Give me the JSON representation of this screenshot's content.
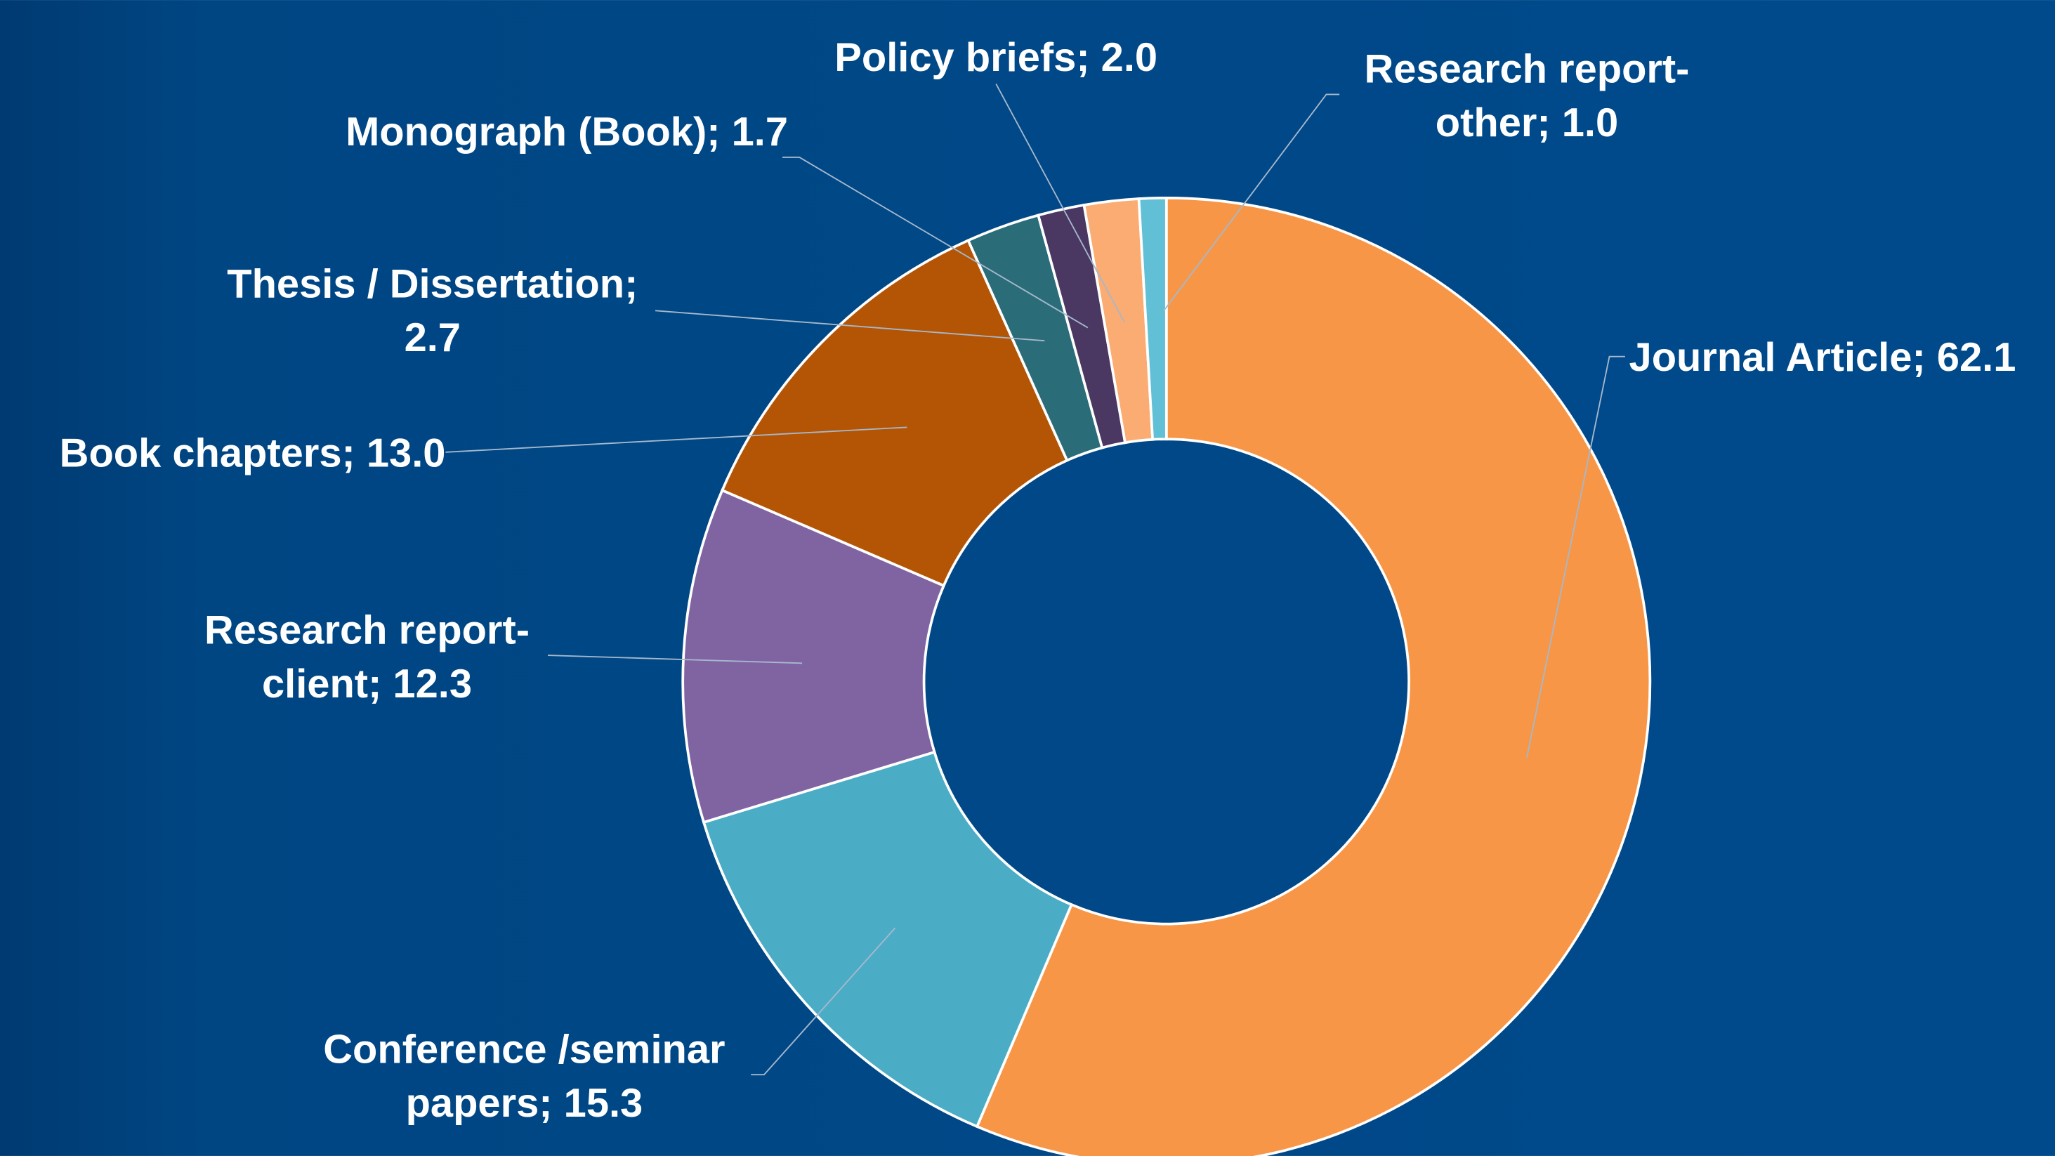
{
  "chart_data": {
    "type": "donut",
    "categories": [
      "Journal Article",
      "Conference /seminar papers",
      "Research report-client",
      "Book chapters",
      "Thesis / Dissertation",
      "Monograph (Book)",
      "Policy briefs",
      "Research report-other"
    ],
    "values": [
      62.1,
      15.3,
      12.3,
      13.0,
      2.7,
      1.7,
      2.0,
      1.0
    ],
    "value_labels": [
      "62.1",
      "15.3",
      "12.3",
      "13.0",
      "2.7",
      "1.7",
      "2.0",
      "1.0"
    ],
    "separator": "; ",
    "colors": [
      "#f79646",
      "#4bacc6",
      "#8064a2",
      "#b45506",
      "#2b6c79",
      "#4a3862",
      "#fbac72",
      "#62c0d6"
    ]
  }
}
